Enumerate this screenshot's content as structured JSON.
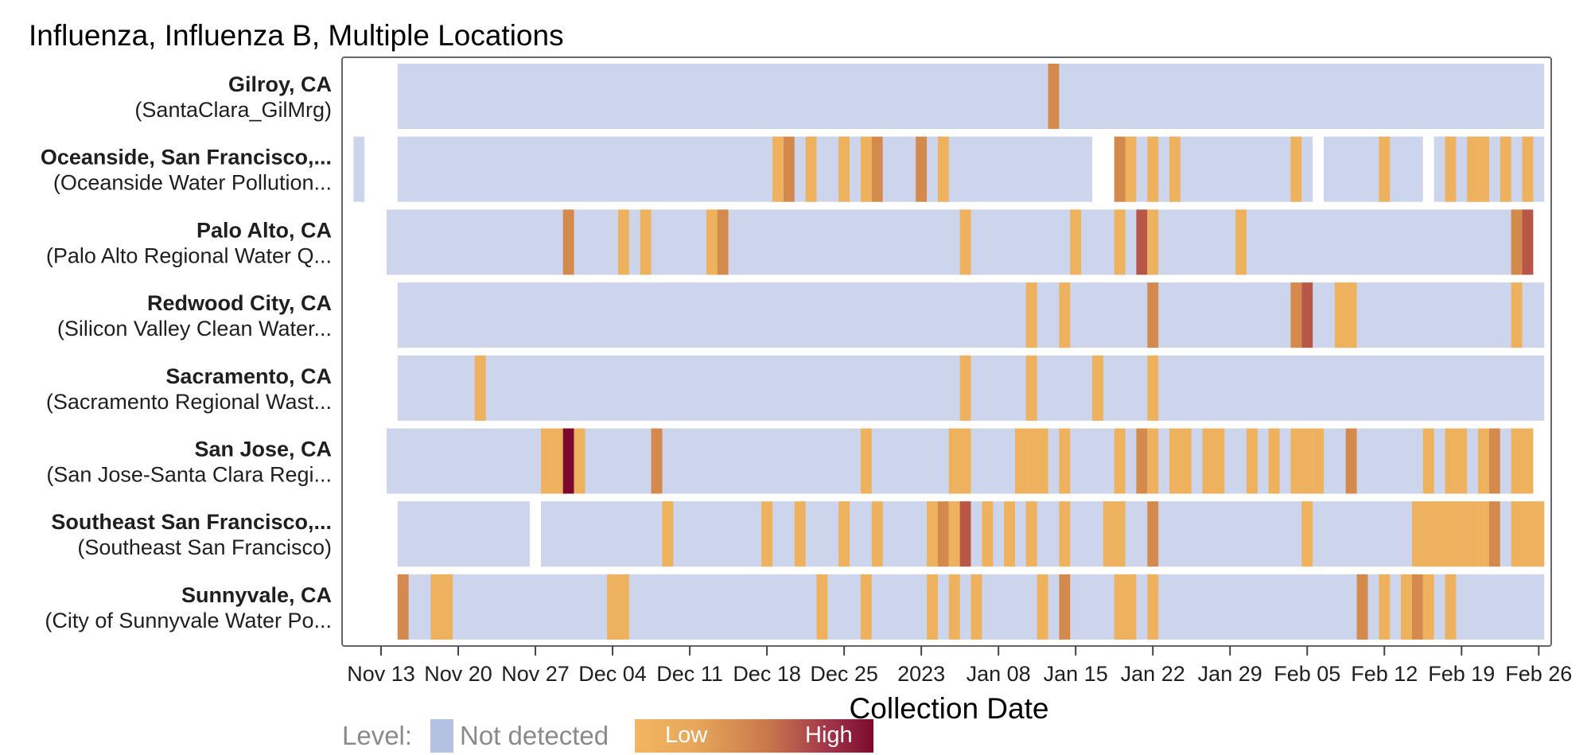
{
  "chart_data": {
    "type": "heatmap",
    "title": "Influenza, Influenza B, Multiple Locations",
    "xlabel": "Collection Date",
    "ylabel": "",
    "x_range": [
      "2022-11-11",
      "2023-02-26"
    ],
    "x_ticks": [
      {
        "date": "2022-11-13",
        "label": "Nov 13"
      },
      {
        "date": "2022-11-20",
        "label": "Nov 20"
      },
      {
        "date": "2022-11-27",
        "label": "Nov 27"
      },
      {
        "date": "2022-12-04",
        "label": "Dec 04"
      },
      {
        "date": "2022-12-11",
        "label": "Dec 11"
      },
      {
        "date": "2022-12-18",
        "label": "Dec 18"
      },
      {
        "date": "2022-12-25",
        "label": "Dec 25"
      },
      {
        "date": "2023-01-01",
        "label": "2023"
      },
      {
        "date": "2023-01-08",
        "label": "Jan 08"
      },
      {
        "date": "2023-01-15",
        "label": "Jan 15"
      },
      {
        "date": "2023-01-22",
        "label": "Jan 22"
      },
      {
        "date": "2023-01-29",
        "label": "Jan 29"
      },
      {
        "date": "2023-02-05",
        "label": "Feb 05"
      },
      {
        "date": "2023-02-12",
        "label": "Feb 12"
      },
      {
        "date": "2023-02-19",
        "label": "Feb 19"
      },
      {
        "date": "2023-02-26",
        "label": "Feb 26"
      }
    ],
    "level_scale": {
      "not_detected": 0,
      "low": 1,
      "high": 4
    },
    "colors": {
      "not_detected": "#ccd5ec",
      "level_1": "#eeb25e",
      "level_2": "#d48a4d",
      "level_3": "#b85648",
      "level_4": "#7d0a2e"
    },
    "rows": [
      {
        "name": "Gilroy, CA",
        "subtitle": "(SantaClara_GilMrg)",
        "sampled": [
          [
            "2022-11-15",
            "2023-02-26"
          ]
        ],
        "detections": [
          [
            "2023-01-13",
            2
          ]
        ]
      },
      {
        "name": "Oceanside, San Francisco,...",
        "subtitle": "(Oceanside Water Pollution...",
        "sampled": [
          [
            "2022-11-11",
            "2022-11-11"
          ],
          [
            "2022-11-15",
            "2023-01-16"
          ],
          [
            "2023-01-19",
            "2023-02-05"
          ],
          [
            "2023-02-07",
            "2023-02-15"
          ],
          [
            "2023-02-17",
            "2023-02-26"
          ]
        ],
        "detections": [
          [
            "2022-12-19",
            1
          ],
          [
            "2022-12-20",
            2
          ],
          [
            "2022-12-22",
            1
          ],
          [
            "2022-12-25",
            1
          ],
          [
            "2022-12-27",
            1
          ],
          [
            "2022-12-28",
            2
          ],
          [
            "2023-01-01",
            2
          ],
          [
            "2023-01-03",
            1
          ],
          [
            "2023-01-19",
            2
          ],
          [
            "2023-01-20",
            1
          ],
          [
            "2023-01-22",
            1
          ],
          [
            "2023-01-24",
            1
          ],
          [
            "2023-02-04",
            1
          ],
          [
            "2023-02-12",
            1
          ],
          [
            "2023-02-18",
            1
          ],
          [
            "2023-02-20",
            1
          ],
          [
            "2023-02-21",
            1
          ],
          [
            "2023-02-23",
            1
          ],
          [
            "2023-02-25",
            1
          ]
        ]
      },
      {
        "name": "Palo Alto, CA",
        "subtitle": "(Palo Alto Regional Water Q...",
        "sampled": [
          [
            "2022-11-14",
            "2023-02-25"
          ]
        ],
        "detections": [
          [
            "2022-11-30",
            2
          ],
          [
            "2022-12-05",
            1
          ],
          [
            "2022-12-07",
            1
          ],
          [
            "2022-12-13",
            1
          ],
          [
            "2022-12-14",
            2
          ],
          [
            "2023-01-05",
            1
          ],
          [
            "2023-01-15",
            1
          ],
          [
            "2023-01-19",
            1
          ],
          [
            "2023-01-21",
            3
          ],
          [
            "2023-01-22",
            1
          ],
          [
            "2023-01-30",
            1
          ],
          [
            "2023-02-24",
            2
          ],
          [
            "2023-02-25",
            3
          ]
        ]
      },
      {
        "name": "Redwood City, CA",
        "subtitle": "(Silicon Valley Clean Water...",
        "sampled": [
          [
            "2022-11-15",
            "2023-02-26"
          ]
        ],
        "detections": [
          [
            "2023-01-11",
            1
          ],
          [
            "2023-01-14",
            1
          ],
          [
            "2023-01-22",
            2
          ],
          [
            "2023-02-04",
            2
          ],
          [
            "2023-02-05",
            3
          ],
          [
            "2023-02-08",
            1
          ],
          [
            "2023-02-09",
            1
          ],
          [
            "2023-02-24",
            1
          ]
        ]
      },
      {
        "name": "Sacramento, CA",
        "subtitle": "(Sacramento Regional Wast...",
        "sampled": [
          [
            "2022-11-15",
            "2023-02-26"
          ]
        ],
        "detections": [
          [
            "2022-11-22",
            1
          ],
          [
            "2023-01-05",
            1
          ],
          [
            "2023-01-11",
            1
          ],
          [
            "2023-01-17",
            1
          ],
          [
            "2023-01-22",
            1
          ]
        ]
      },
      {
        "name": "San Jose, CA",
        "subtitle": "(San Jose-Santa Clara Regi...",
        "sampled": [
          [
            "2022-11-14",
            "2023-02-25"
          ]
        ],
        "detections": [
          [
            "2022-11-28",
            1
          ],
          [
            "2022-11-29",
            1
          ],
          [
            "2022-11-30",
            4
          ],
          [
            "2022-12-01",
            1
          ],
          [
            "2022-12-08",
            2
          ],
          [
            "2022-12-27",
            1
          ],
          [
            "2023-01-04",
            1
          ],
          [
            "2023-01-05",
            1
          ],
          [
            "2023-01-10",
            1
          ],
          [
            "2023-01-11",
            1
          ],
          [
            "2023-01-12",
            1
          ],
          [
            "2023-01-14",
            1
          ],
          [
            "2023-01-19",
            1
          ],
          [
            "2023-01-21",
            2
          ],
          [
            "2023-01-22",
            1
          ],
          [
            "2023-01-24",
            1
          ],
          [
            "2023-01-25",
            1
          ],
          [
            "2023-01-27",
            1
          ],
          [
            "2023-01-28",
            1
          ],
          [
            "2023-01-31",
            1
          ],
          [
            "2023-02-02",
            1
          ],
          [
            "2023-02-04",
            1
          ],
          [
            "2023-02-05",
            1
          ],
          [
            "2023-02-06",
            1
          ],
          [
            "2023-02-09",
            2
          ],
          [
            "2023-02-16",
            1
          ],
          [
            "2023-02-18",
            1
          ],
          [
            "2023-02-19",
            1
          ],
          [
            "2023-02-21",
            1
          ],
          [
            "2023-02-22",
            2
          ],
          [
            "2023-02-24",
            1
          ],
          [
            "2023-02-25",
            1
          ]
        ]
      },
      {
        "name": "Southeast San Francisco,...",
        "subtitle": "(Southeast San Francisco)",
        "sampled": [
          [
            "2022-11-15",
            "2022-11-26"
          ],
          [
            "2022-11-28",
            "2023-02-26"
          ]
        ],
        "detections": [
          [
            "2022-12-09",
            1
          ],
          [
            "2022-12-18",
            1
          ],
          [
            "2022-12-21",
            1
          ],
          [
            "2022-12-25",
            1
          ],
          [
            "2022-12-28",
            1
          ],
          [
            "2023-01-02",
            1
          ],
          [
            "2023-01-03",
            2
          ],
          [
            "2023-01-04",
            1
          ],
          [
            "2023-01-05",
            3
          ],
          [
            "2023-01-07",
            1
          ],
          [
            "2023-01-09",
            1
          ],
          [
            "2023-01-11",
            1
          ],
          [
            "2023-01-14",
            1
          ],
          [
            "2023-01-18",
            1
          ],
          [
            "2023-01-19",
            1
          ],
          [
            "2023-01-22",
            2
          ],
          [
            "2023-02-05",
            1
          ],
          [
            "2023-02-15",
            1
          ],
          [
            "2023-02-16",
            1
          ],
          [
            "2023-02-17",
            1
          ],
          [
            "2023-02-18",
            1
          ],
          [
            "2023-02-19",
            1
          ],
          [
            "2023-02-20",
            1
          ],
          [
            "2023-02-21",
            1
          ],
          [
            "2023-02-22",
            2
          ],
          [
            "2023-02-24",
            1
          ],
          [
            "2023-02-25",
            1
          ],
          [
            "2023-02-26",
            1
          ]
        ]
      },
      {
        "name": "Sunnyvale, CA",
        "subtitle": "(City of Sunnyvale Water Po...",
        "sampled": [
          [
            "2022-11-15",
            "2023-02-26"
          ]
        ],
        "detections": [
          [
            "2022-11-15",
            2
          ],
          [
            "2022-11-18",
            1
          ],
          [
            "2022-11-19",
            1
          ],
          [
            "2022-12-04",
            1
          ],
          [
            "2022-12-05",
            1
          ],
          [
            "2022-12-23",
            1
          ],
          [
            "2022-12-27",
            1
          ],
          [
            "2023-01-02",
            1
          ],
          [
            "2023-01-04",
            1
          ],
          [
            "2023-01-06",
            1
          ],
          [
            "2023-01-12",
            1
          ],
          [
            "2023-01-14",
            2
          ],
          [
            "2023-01-19",
            1
          ],
          [
            "2023-01-20",
            1
          ],
          [
            "2023-01-22",
            1
          ],
          [
            "2023-02-10",
            2
          ],
          [
            "2023-02-12",
            1
          ],
          [
            "2023-02-14",
            1
          ],
          [
            "2023-02-15",
            2
          ],
          [
            "2023-02-16",
            1
          ],
          [
            "2023-02-18",
            1
          ]
        ]
      }
    ],
    "legend": {
      "label": "Level:",
      "not_detected_label": "Not detected",
      "low_label": "Low",
      "high_label": "High",
      "placement": "bottom-left"
    }
  }
}
